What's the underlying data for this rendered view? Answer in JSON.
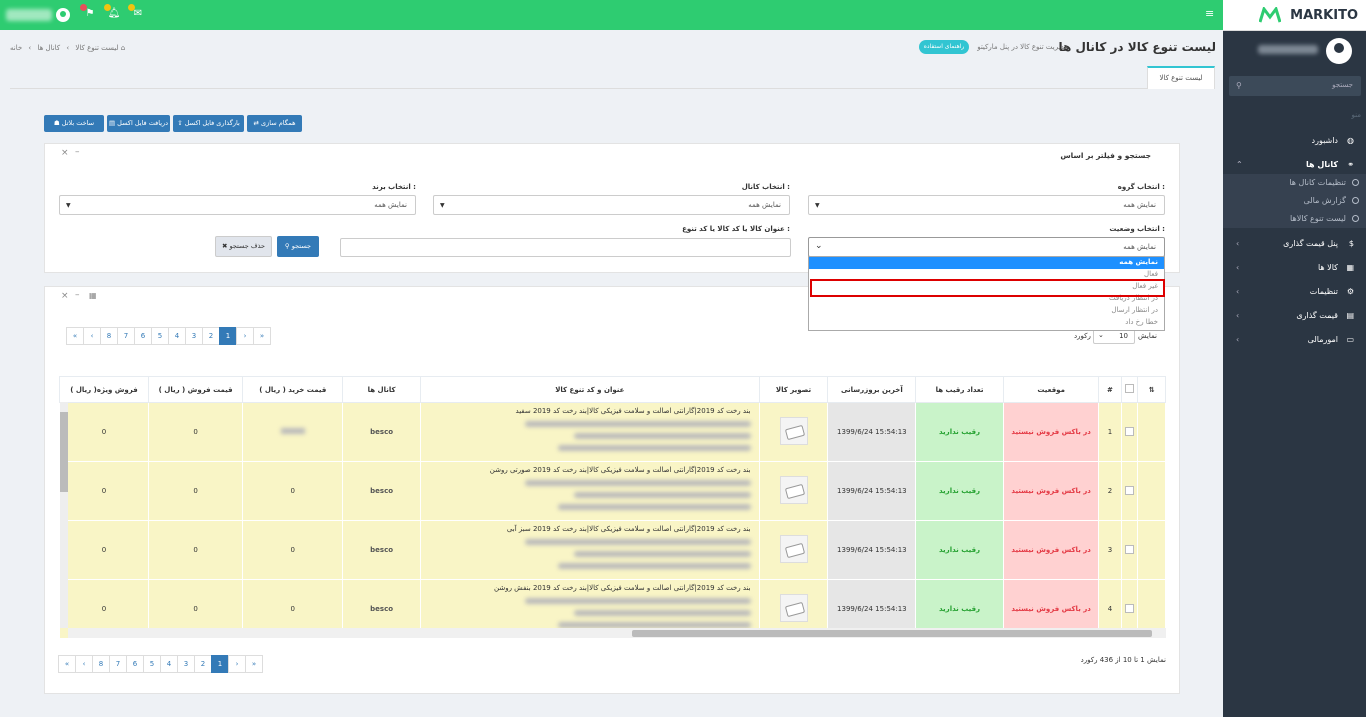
{
  "topbar": {
    "menu_icon": "hamburger-icon"
  },
  "brand": {
    "name": "MARKITO"
  },
  "sidebar": {
    "search_placeholder": "جستجو",
    "divider": "منو",
    "items": [
      {
        "label": "داشبورد",
        "icon": "dashboard-icon"
      },
      {
        "label": "کانال ها",
        "icon": "link-icon"
      },
      {
        "label": "پنل قیمت گذاری",
        "icon": "dollar-icon"
      },
      {
        "label": "کالا ها",
        "icon": "cubes-icon"
      },
      {
        "label": "تنظیمات",
        "icon": "gear-icon"
      },
      {
        "label": "قیمت گذاری",
        "icon": "chart-icon"
      },
      {
        "label": "امورمالی",
        "icon": "card-icon"
      }
    ],
    "sub_items": [
      "تنظیمات کانال ها",
      "گزارش مالی",
      "لیست تنوع کالاها"
    ]
  },
  "header": {
    "title": "لیست تنوع کالا در کانال ها",
    "subtitle": "مدیریت تنوع کالا در پنل مارکیتو",
    "help": "راهنمای استفاده",
    "breadcrumb": [
      "خانه",
      "کانال ها",
      "لیست تنوع کالا"
    ],
    "tab": "لیست تنوع کالا"
  },
  "actions": {
    "sync": "همگام سازی",
    "upload": "بارگذاری فایل اکسل",
    "download": "دریافت فایل اکسل",
    "build": "ساخت بلاتل"
  },
  "filter": {
    "title": "جستجو و فیلتر بر اساس",
    "group_label": "انتخاب گروه :",
    "channel_label": "انتخاب کانال :",
    "brand_label": "انتخاب برند :",
    "status_label": "انتخاب وضعیت :",
    "title_label": "عنوان کالا یا کد کالا یا کد تنوع :",
    "all": "نمایش همه",
    "search": "جستجو",
    "clear": "حذف جستجو",
    "options": [
      "نمایش همه",
      "فعال",
      "غیر فعال",
      "در انتظار دریافت",
      "در انتظار ارسال",
      "خطا رخ داد"
    ]
  },
  "table": {
    "length_label": "نمایش",
    "length_value": "10",
    "length_suffix": "رکورد",
    "pages": [
      "«",
      "‹",
      "1",
      "2",
      "3",
      "4",
      "5",
      "6",
      "7",
      "8",
      "›",
      "»"
    ],
    "columns": [
      "#",
      "موقعیت",
      "تعداد رقیب ها",
      "آخرین بروزرسانی",
      "تصویر کالا",
      "عنوان و کد تنوع کالا",
      "کانال ها",
      "قیمت خرید ( ریال )",
      "قیمت فروش ( ریال )",
      "فروش ویژه( ریال )"
    ],
    "rows": [
      {
        "n": "1",
        "status": "در باکس فروش نیستید",
        "rivals": "رقیب ندارید",
        "updated": "15:54:13 1399/6/24",
        "title": "بند رخت کد 2019|گارانتی اصالت و سلامت فیزیکی کالا|بند رخت کد 2019 سفید",
        "channel": "besco",
        "buy": "",
        "sell": "0",
        "special": "0"
      },
      {
        "n": "2",
        "status": "در باکس فروش نیستید",
        "rivals": "رقیب ندارید",
        "updated": "15:54:13 1399/6/24",
        "title": "بند رخت کد 2019|گارانتی اصالت و سلامت فیزیکی کالا|بند رخت کد 2019 صورتی روشن",
        "channel": "besco",
        "buy": "0",
        "sell": "0",
        "special": "0"
      },
      {
        "n": "3",
        "status": "در باکس فروش نیستید",
        "rivals": "رقیب ندارید",
        "updated": "15:54:13 1399/6/24",
        "title": "بند رخت کد 2019|گارانتی اصالت و سلامت فیزیکی کالا|بند رخت کد 2019 سبز آبی",
        "channel": "besco",
        "buy": "0",
        "sell": "0",
        "special": "0"
      },
      {
        "n": "4",
        "status": "در باکس فروش نیستید",
        "rivals": "رقیب ندارید",
        "updated": "15:54:13 1399/6/24",
        "title": "بند رخت کد 2019|گارانتی اصالت و سلامت فیزیکی کالا|بند رخت کد 2019 بنفش روشن",
        "channel": "besco",
        "buy": "0",
        "sell": "0",
        "special": "0"
      }
    ],
    "info": "نمایش 1 تا 10 از 436 رکورد"
  }
}
